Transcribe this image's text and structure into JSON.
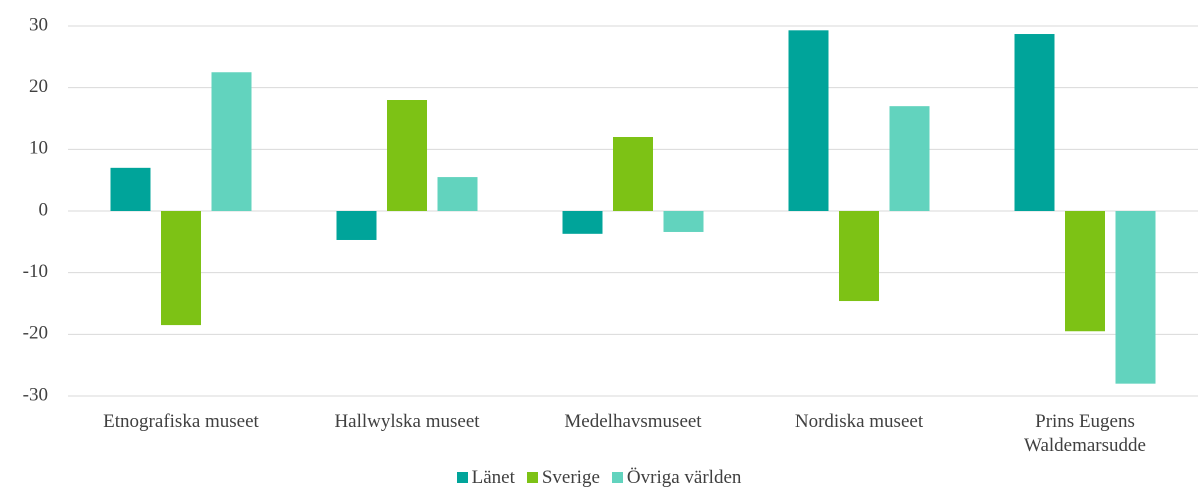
{
  "chart_data": {
    "type": "bar",
    "categories": [
      "Etnografiska museet",
      "Hallwylska museet",
      "Medelhavsmuseet",
      "Nordiska museet",
      "Prins Eugens Waldemarsudde"
    ],
    "series": [
      {
        "name": "Länet",
        "color": "#00a49a",
        "values": [
          7,
          -4.7,
          -3.7,
          29.3,
          28.7
        ]
      },
      {
        "name": "Sverige",
        "color": "#7dc215",
        "values": [
          -18.5,
          18,
          12,
          -14.6,
          -19.5
        ]
      },
      {
        "name": "Övriga världen",
        "color": "#62d3be",
        "values": [
          22.5,
          5.5,
          -3.4,
          17,
          -28
        ]
      }
    ],
    "ylim": [
      -30,
      30
    ],
    "yticks": [
      -30,
      -20,
      -10,
      0,
      10,
      20,
      30
    ],
    "grid": true,
    "legend": "bottom"
  }
}
